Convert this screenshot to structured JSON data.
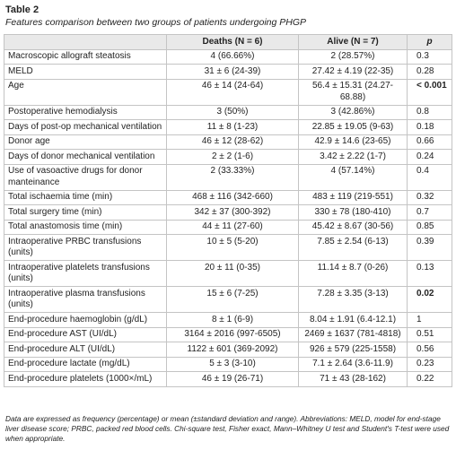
{
  "header": {
    "label": "Table 2",
    "caption": "Features comparison between two groups of patients undergoing PHGP"
  },
  "table": {
    "columns": [
      "",
      "Deaths (N = 6)",
      "Alive (N = 7)",
      "p"
    ],
    "rows": [
      [
        "Macroscopic allograft steatosis",
        "4 (66.66%)",
        "2 (28.57%)",
        "0.3"
      ],
      [
        "MELD",
        "31 ± 6 (24-39)",
        "27.42 ± 4.19 (22-35)",
        "0.28"
      ],
      [
        "Age",
        "46 ± 14 (24-64)",
        "56.4 ± 15.31 (24.27-68.88)",
        "< 0.001"
      ],
      [
        "Postoperative hemodialysis",
        "3 (50%)",
        "3 (42.86%)",
        "0.8"
      ],
      [
        "Days of post-op mechanical ventilation",
        "11 ± 8 (1-23)",
        "22.85 ± 19.05 (9-63)",
        "0.18"
      ],
      [
        "Donor age",
        "46 ± 12 (28-62)",
        "42.9 ± 14.6 (23-65)",
        "0.66"
      ],
      [
        "Days of donor mechanical ventilation",
        "2 ± 2 (1-6)",
        "3.42 ± 2.22 (1-7)",
        "0.24"
      ],
      [
        "Use of vasoactive drugs for donor manteinance",
        "2 (33.33%)",
        "4 (57.14%)",
        "0.4"
      ],
      [
        "Total ischaemia time (min)",
        "468 ± 116 (342-660)",
        "483 ± 119 (219-551)",
        "0.32"
      ],
      [
        "Total surgery time (min)",
        "342 ± 37 (300-392)",
        "330 ± 78 (180-410)",
        "0.7"
      ],
      [
        "Total anastomosis time (min)",
        "44 ± 11 (27-60)",
        "45.42 ± 8.67 (30-56)",
        "0.85"
      ],
      [
        "Intraoperative PRBC transfusions (units)",
        "10 ± 5 (5-20)",
        "7.85 ± 2.54 (6-13)",
        "0.39"
      ],
      [
        "Intraoperative platelets transfusions (units)",
        "20 ± 11 (0-35)",
        "11.14 ± 8.7 (0-26)",
        "0.13"
      ],
      [
        "Intraoperative plasma transfusions (units)",
        "15 ± 6 (7-25)",
        "7.28 ± 3.35 (3-13)",
        "0.02"
      ],
      [
        "End-procedure haemoglobin (g/dL)",
        "8 ± 1 (6-9)",
        "8.04 ± 1.91 (6.4-12.1)",
        "1"
      ],
      [
        "End-procedure AST (UI/dL)",
        "3164 ± 2016 (997-6505)",
        "2469 ± 1637 (781-4818)",
        "0.51"
      ],
      [
        "End-procedure ALT (UI/dL)",
        "1122 ± 601 (369-2092)",
        "926 ± 579 (225-1558)",
        "0.56"
      ],
      [
        "End-procedure lactate (mg/dL)",
        "5 ± 3 (3-10)",
        "7.1 ± 2.64 (3.6-11.9)",
        "0.23"
      ],
      [
        "End-procedure platelets (1000×/mL)",
        "46 ± 19 (26-71)",
        "71 ± 43 (28-162)",
        "0.22"
      ]
    ]
  },
  "footnote": "Data are expressed as frequency (percentage) or mean (±standard deviation and range). Abbreviations: MELD, model for end-stage liver disease score; PRBC, packed red blood cells. Chi-square test, Fisher exact, Mann–Whitney U test and Student's T-test were used when appropriate."
}
